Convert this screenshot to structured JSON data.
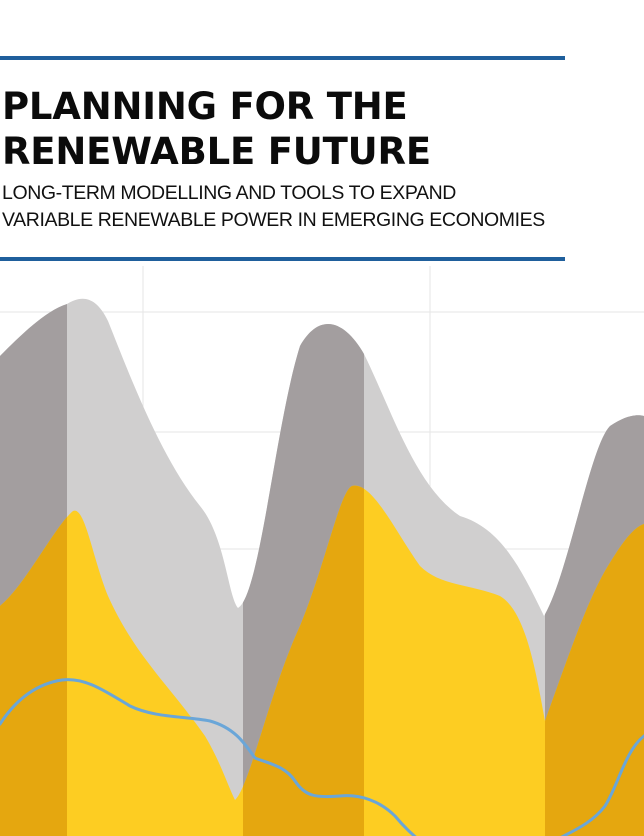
{
  "cover": {
    "title_line_1": "PLANNING FOR THE",
    "title_line_2": "RENEWABLE FUTURE",
    "subtitle_line_1": "LONG-TERM MODELLING AND TOOLS TO EXPAND",
    "subtitle_line_2": "VARIABLE RENEWABLE POWER IN EMERGING ECONOMIES"
  },
  "colors": {
    "rule": "#1f5f9c",
    "title_text": "#0b0b0b",
    "gray_dark": "#a39e9f",
    "gray_light": "#d0cfcf",
    "yellow_dark": "#e5a70f",
    "yellow_light": "#fdcd22",
    "blue_line": "#6aa6d8",
    "grid": "#e6e6e6"
  },
  "icons": {
    "artwork": "load-curve-illustration"
  }
}
